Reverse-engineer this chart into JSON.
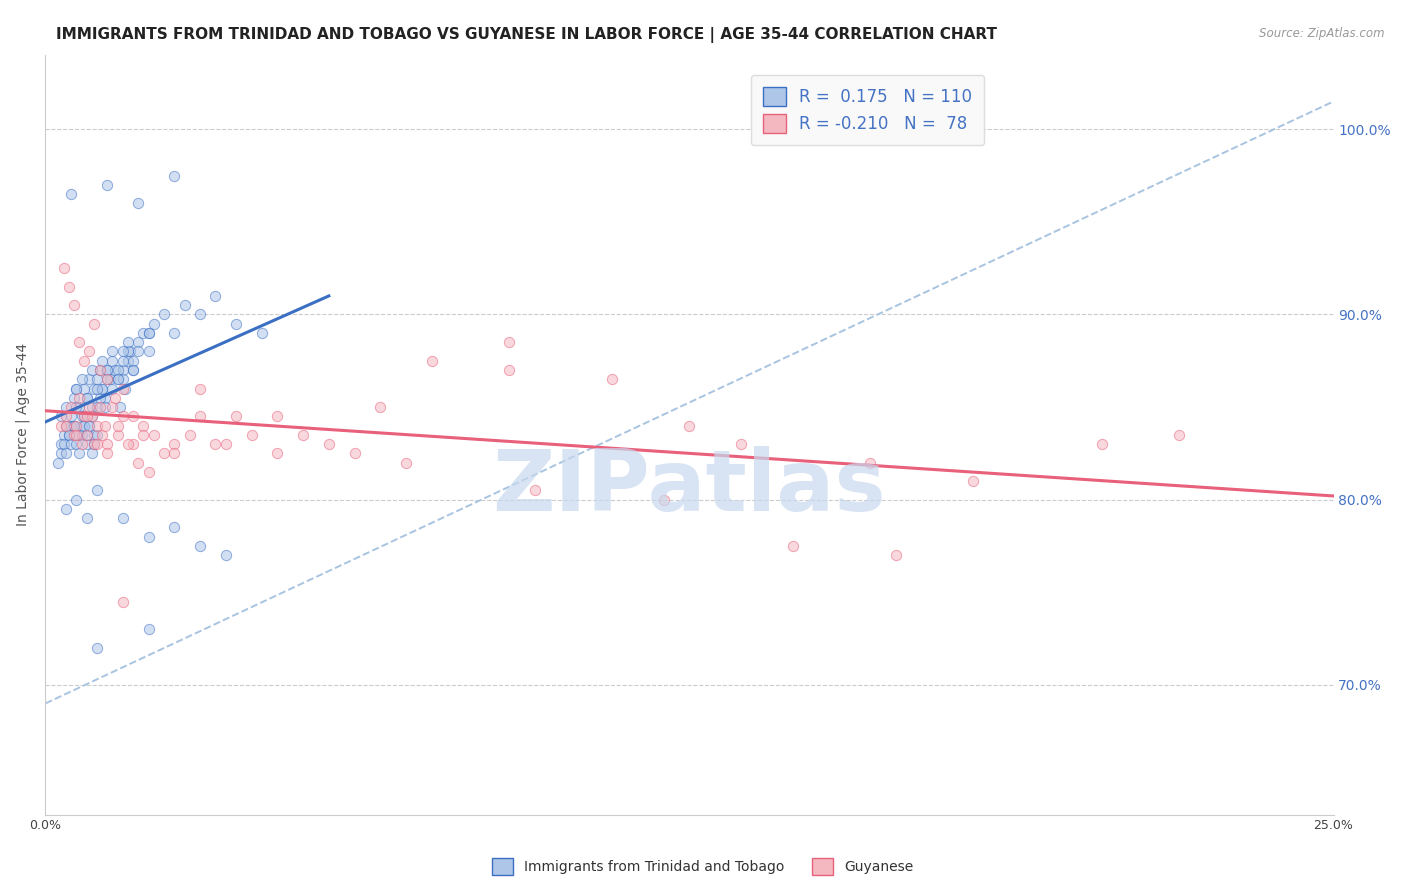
{
  "title": "IMMIGRANTS FROM TRINIDAD AND TOBAGO VS GUYANESE IN LABOR FORCE | AGE 35-44 CORRELATION CHART",
  "source": "Source: ZipAtlas.com",
  "ylabel": "In Labor Force | Age 35-44",
  "y_ticks": [
    70.0,
    80.0,
    90.0,
    100.0
  ],
  "y_tick_labels": [
    "70.0%",
    "80.0%",
    "90.0%",
    "100.0%"
  ],
  "x_range": [
    0.0,
    25.0
  ],
  "y_range": [
    63.0,
    104.0
  ],
  "blue_R": 0.175,
  "blue_N": 110,
  "pink_R": -0.21,
  "pink_N": 78,
  "blue_color": "#aec6e8",
  "pink_color": "#f4b8c1",
  "blue_line_color": "#3a6fc4",
  "pink_line_color": "#e8607a",
  "dashed_line_color": "#a8c4e0",
  "watermark": "ZIPatlas",
  "watermark_color": "#c8d8ee",
  "legend_blue_label": "Immigrants from Trinidad and Tobago",
  "legend_pink_label": "Guyanese",
  "blue_line_x0": 0.0,
  "blue_line_y0": 84.2,
  "blue_line_x1": 5.5,
  "blue_line_y1": 91.0,
  "pink_line_x0": 0.0,
  "pink_line_y0": 84.8,
  "pink_line_x1": 25.0,
  "pink_line_y1": 80.2,
  "dashed_x0": 0.0,
  "dashed_y0": 69.0,
  "dashed_x1": 25.0,
  "dashed_y1": 101.5,
  "blue_scatter_x": [
    0.3,
    0.4,
    0.5,
    0.55,
    0.6,
    0.65,
    0.7,
    0.75,
    0.8,
    0.85,
    0.9,
    0.95,
    1.0,
    1.05,
    1.1,
    1.15,
    1.2,
    1.25,
    1.3,
    1.35,
    1.4,
    1.45,
    1.5,
    1.55,
    1.6,
    1.65,
    1.7,
    0.3,
    0.35,
    0.4,
    0.45,
    0.5,
    0.55,
    0.6,
    0.65,
    0.7,
    0.75,
    0.8,
    0.85,
    0.9,
    0.95,
    1.0,
    1.05,
    1.1,
    1.15,
    1.2,
    1.3,
    1.4,
    1.5,
    1.6,
    1.7,
    1.8,
    1.9,
    2.0,
    2.1,
    2.3,
    2.5,
    2.7,
    3.0,
    3.3,
    3.7,
    4.2,
    0.25,
    0.3,
    0.35,
    0.4,
    0.45,
    0.5,
    0.55,
    0.6,
    0.65,
    0.7,
    0.75,
    0.8,
    0.85,
    0.9,
    0.95,
    1.0,
    1.5,
    2.0,
    0.5,
    1.2,
    1.8,
    2.5,
    0.4,
    0.6,
    0.8,
    1.0,
    1.5,
    2.0,
    2.5,
    3.0,
    3.5,
    1.0,
    2.0,
    0.6,
    0.7,
    0.8,
    0.9,
    1.0,
    1.1,
    1.2,
    1.3,
    1.4,
    1.5,
    1.6,
    1.7,
    1.8,
    2.0
  ],
  "blue_scatter_y": [
    84.5,
    85.0,
    84.0,
    85.5,
    86.0,
    85.0,
    84.5,
    86.0,
    85.5,
    86.5,
    85.0,
    86.0,
    86.5,
    87.0,
    86.0,
    85.5,
    87.0,
    86.5,
    87.5,
    87.0,
    86.5,
    85.0,
    87.0,
    86.0,
    87.5,
    88.0,
    87.0,
    83.0,
    83.5,
    84.0,
    83.5,
    84.5,
    84.0,
    85.0,
    83.5,
    84.0,
    84.5,
    83.0,
    84.0,
    84.5,
    83.5,
    85.0,
    85.5,
    86.0,
    85.0,
    86.5,
    86.0,
    87.0,
    86.5,
    88.0,
    87.5,
    88.5,
    89.0,
    88.0,
    89.5,
    90.0,
    89.0,
    90.5,
    90.0,
    91.0,
    89.5,
    89.0,
    82.0,
    82.5,
    83.0,
    82.5,
    83.5,
    83.0,
    84.0,
    83.0,
    82.5,
    83.5,
    84.0,
    83.5,
    84.0,
    82.5,
    83.0,
    83.5,
    88.0,
    89.0,
    96.5,
    97.0,
    96.0,
    97.5,
    79.5,
    80.0,
    79.0,
    80.5,
    79.0,
    78.0,
    78.5,
    77.5,
    77.0,
    72.0,
    73.0,
    86.0,
    86.5,
    85.5,
    87.0,
    86.0,
    87.5,
    87.0,
    88.0,
    86.5,
    87.5,
    88.5,
    87.0,
    88.0,
    89.0
  ],
  "pink_scatter_x": [
    0.3,
    0.4,
    0.5,
    0.55,
    0.6,
    0.65,
    0.7,
    0.75,
    0.8,
    0.85,
    0.9,
    0.95,
    1.0,
    1.05,
    1.1,
    1.15,
    1.2,
    1.3,
    1.4,
    1.5,
    1.7,
    1.9,
    2.1,
    2.3,
    2.5,
    2.8,
    3.0,
    3.3,
    3.7,
    4.0,
    4.5,
    5.0,
    6.0,
    7.5,
    9.0,
    11.0,
    13.5,
    16.0,
    18.0,
    20.5,
    22.0,
    0.35,
    0.45,
    0.55,
    0.65,
    0.75,
    0.85,
    0.95,
    1.05,
    1.2,
    1.35,
    1.5,
    1.7,
    1.9,
    0.4,
    0.6,
    0.8,
    1.0,
    1.2,
    1.4,
    1.6,
    1.8,
    2.0,
    2.5,
    3.5,
    4.5,
    5.5,
    7.0,
    9.5,
    12.0,
    14.5,
    16.5,
    3.0,
    6.5,
    9.0,
    12.5,
    1.5
  ],
  "pink_scatter_y": [
    84.0,
    84.5,
    85.0,
    83.5,
    84.0,
    85.5,
    83.0,
    84.5,
    83.5,
    85.0,
    84.5,
    83.0,
    84.0,
    85.0,
    83.5,
    84.0,
    83.0,
    85.0,
    83.5,
    84.5,
    83.0,
    84.0,
    83.5,
    82.5,
    83.0,
    83.5,
    84.5,
    83.0,
    84.5,
    83.5,
    82.5,
    83.5,
    82.5,
    87.5,
    87.0,
    86.5,
    83.0,
    82.0,
    81.0,
    83.0,
    83.5,
    92.5,
    91.5,
    90.5,
    88.5,
    87.5,
    88.0,
    89.5,
    87.0,
    86.5,
    85.5,
    86.0,
    84.5,
    83.5,
    84.0,
    83.5,
    84.5,
    83.0,
    82.5,
    84.0,
    83.0,
    82.0,
    81.5,
    82.5,
    83.0,
    84.5,
    83.0,
    82.0,
    80.5,
    80.0,
    77.5,
    77.0,
    86.0,
    85.0,
    88.5,
    84.0,
    74.5
  ],
  "background_color": "#ffffff",
  "grid_color": "#cccccc",
  "title_fontsize": 11,
  "axis_label_fontsize": 10,
  "tick_label_fontsize": 9,
  "legend_fontsize": 12,
  "marker_size": 55,
  "marker_alpha": 0.55
}
